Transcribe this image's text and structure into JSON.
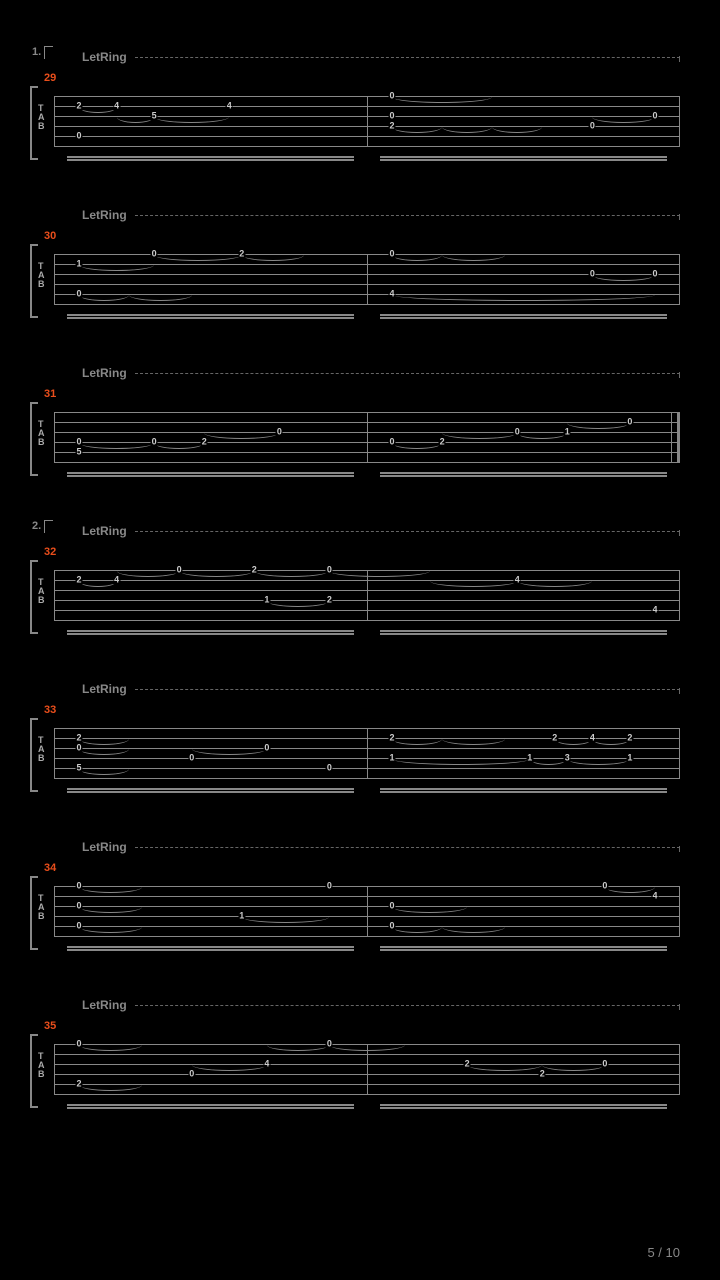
{
  "page": {
    "current": 5,
    "total": 10
  },
  "letring_label": "LetRing",
  "tab_letters": [
    "T",
    "A",
    "B"
  ],
  "string_positions": [
    0,
    10,
    20,
    30,
    40,
    50
  ],
  "accent_color": "#e94e1b",
  "measures": [
    {
      "number": 29,
      "repeat": "1.",
      "bars": [
        0,
        50,
        100
      ],
      "beams": [
        [
          2,
          48
        ],
        [
          52,
          98
        ]
      ],
      "notes": [
        {
          "s": 1,
          "x": 4,
          "f": "2"
        },
        {
          "s": 1,
          "x": 10,
          "f": "4"
        },
        {
          "s": 4,
          "x": 4,
          "f": "0"
        },
        {
          "s": 2,
          "x": 16,
          "f": "5"
        },
        {
          "s": 1,
          "x": 28,
          "f": "4"
        },
        {
          "s": 0,
          "x": 54,
          "f": "0"
        },
        {
          "s": 2,
          "x": 54,
          "f": "0"
        },
        {
          "s": 3,
          "x": 54,
          "f": "2"
        },
        {
          "s": 3,
          "x": 86,
          "f": "0"
        },
        {
          "s": 2,
          "x": 96,
          "f": "0"
        }
      ],
      "ties": [
        [
          4,
          10,
          1
        ],
        [
          10,
          16,
          2
        ],
        [
          16,
          28,
          2
        ],
        [
          54,
          70,
          0
        ],
        [
          54,
          62,
          3
        ],
        [
          62,
          70,
          3
        ],
        [
          70,
          78,
          3
        ],
        [
          86,
          96,
          2
        ]
      ]
    },
    {
      "number": 30,
      "bars": [
        0,
        50,
        100
      ],
      "beams": [
        [
          2,
          48
        ],
        [
          52,
          98
        ]
      ],
      "notes": [
        {
          "s": 1,
          "x": 4,
          "f": "1"
        },
        {
          "s": 4,
          "x": 4,
          "f": "0"
        },
        {
          "s": 0,
          "x": 16,
          "f": "0"
        },
        {
          "s": 0,
          "x": 30,
          "f": "2"
        },
        {
          "s": 0,
          "x": 54,
          "f": "0"
        },
        {
          "s": 4,
          "x": 54,
          "f": "4"
        },
        {
          "s": 2,
          "x": 86,
          "f": "0"
        },
        {
          "s": 2,
          "x": 96,
          "f": "0"
        }
      ],
      "ties": [
        [
          4,
          16,
          1
        ],
        [
          4,
          12,
          4
        ],
        [
          12,
          22,
          4
        ],
        [
          16,
          30,
          0
        ],
        [
          30,
          40,
          0
        ],
        [
          54,
          62,
          0
        ],
        [
          62,
          72,
          0
        ],
        [
          54,
          96,
          4
        ],
        [
          86,
          96,
          2
        ]
      ]
    },
    {
      "number": 31,
      "bars": [
        0,
        50,
        100
      ],
      "end_bar": true,
      "beams": [
        [
          2,
          48
        ],
        [
          52,
          98
        ]
      ],
      "notes": [
        {
          "s": 3,
          "x": 4,
          "f": "0"
        },
        {
          "s": 4,
          "x": 4,
          "f": "5"
        },
        {
          "s": 3,
          "x": 16,
          "f": "0"
        },
        {
          "s": 3,
          "x": 24,
          "f": "2"
        },
        {
          "s": 2,
          "x": 36,
          "f": "0"
        },
        {
          "s": 3,
          "x": 54,
          "f": "0"
        },
        {
          "s": 3,
          "x": 62,
          "f": "2"
        },
        {
          "s": 2,
          "x": 74,
          "f": "0"
        },
        {
          "s": 2,
          "x": 82,
          "f": "1"
        },
        {
          "s": 1,
          "x": 92,
          "f": "0"
        }
      ],
      "ties": [
        [
          4,
          16,
          3
        ],
        [
          16,
          24,
          3
        ],
        [
          24,
          36,
          2
        ],
        [
          54,
          62,
          3
        ],
        [
          62,
          74,
          2
        ],
        [
          74,
          82,
          2
        ],
        [
          82,
          92,
          1
        ]
      ]
    },
    {
      "number": 32,
      "repeat": "2.",
      "bars": [
        0,
        50,
        100
      ],
      "beams": [
        [
          2,
          48
        ],
        [
          52,
          98
        ]
      ],
      "notes": [
        {
          "s": 1,
          "x": 4,
          "f": "2"
        },
        {
          "s": 1,
          "x": 10,
          "f": "4"
        },
        {
          "s": 0,
          "x": 20,
          "f": "0"
        },
        {
          "s": 0,
          "x": 32,
          "f": "2"
        },
        {
          "s": 0,
          "x": 44,
          "f": "0"
        },
        {
          "s": 3,
          "x": 34,
          "f": "1"
        },
        {
          "s": 3,
          "x": 44,
          "f": "2"
        },
        {
          "s": 1,
          "x": 74,
          "f": "4"
        },
        {
          "s": 4,
          "x": 96,
          "f": "4"
        }
      ],
      "ties": [
        [
          4,
          10,
          1
        ],
        [
          10,
          20,
          0
        ],
        [
          20,
          32,
          0
        ],
        [
          32,
          44,
          0
        ],
        [
          34,
          44,
          3
        ],
        [
          44,
          60,
          0
        ],
        [
          60,
          74,
          1
        ],
        [
          74,
          86,
          1
        ]
      ]
    },
    {
      "number": 33,
      "bars": [
        0,
        50,
        100
      ],
      "beams": [
        [
          2,
          48
        ],
        [
          52,
          98
        ]
      ],
      "notes": [
        {
          "s": 1,
          "x": 4,
          "f": "2"
        },
        {
          "s": 2,
          "x": 4,
          "f": "0"
        },
        {
          "s": 4,
          "x": 4,
          "f": "5"
        },
        {
          "s": 3,
          "x": 22,
          "f": "0"
        },
        {
          "s": 2,
          "x": 34,
          "f": "0"
        },
        {
          "s": 4,
          "x": 44,
          "f": "0"
        },
        {
          "s": 1,
          "x": 54,
          "f": "2"
        },
        {
          "s": 3,
          "x": 54,
          "f": "1"
        },
        {
          "s": 3,
          "x": 76,
          "f": "1"
        },
        {
          "s": 1,
          "x": 80,
          "f": "2"
        },
        {
          "s": 1,
          "x": 86,
          "f": "4"
        },
        {
          "s": 1,
          "x": 92,
          "f": "2"
        },
        {
          "s": 3,
          "x": 82,
          "f": "3"
        },
        {
          "s": 3,
          "x": 92,
          "f": "1"
        }
      ],
      "ties": [
        [
          4,
          12,
          1
        ],
        [
          4,
          12,
          2
        ],
        [
          4,
          12,
          4
        ],
        [
          22,
          34,
          2
        ],
        [
          54,
          62,
          1
        ],
        [
          62,
          72,
          1
        ],
        [
          54,
          76,
          3
        ],
        [
          80,
          86,
          1
        ],
        [
          86,
          92,
          1
        ],
        [
          76,
          82,
          3
        ],
        [
          82,
          92,
          3
        ]
      ]
    },
    {
      "number": 34,
      "bars": [
        0,
        50,
        100
      ],
      "beams": [
        [
          2,
          48
        ],
        [
          52,
          98
        ]
      ],
      "notes": [
        {
          "s": 0,
          "x": 4,
          "f": "0"
        },
        {
          "s": 2,
          "x": 4,
          "f": "0"
        },
        {
          "s": 4,
          "x": 4,
          "f": "0"
        },
        {
          "s": 3,
          "x": 30,
          "f": "1"
        },
        {
          "s": 0,
          "x": 44,
          "f": "0"
        },
        {
          "s": 2,
          "x": 54,
          "f": "0"
        },
        {
          "s": 4,
          "x": 54,
          "f": "0"
        },
        {
          "s": 0,
          "x": 88,
          "f": "0"
        },
        {
          "s": 1,
          "x": 96,
          "f": "4"
        }
      ],
      "ties": [
        [
          4,
          14,
          0
        ],
        [
          4,
          14,
          2
        ],
        [
          4,
          14,
          4
        ],
        [
          30,
          44,
          3
        ],
        [
          54,
          62,
          4
        ],
        [
          62,
          72,
          4
        ],
        [
          54,
          66,
          2
        ],
        [
          88,
          96,
          0
        ]
      ]
    },
    {
      "number": 35,
      "bars": [
        0,
        50,
        100
      ],
      "beams": [
        [
          2,
          48
        ],
        [
          52,
          98
        ]
      ],
      "notes": [
        {
          "s": 0,
          "x": 4,
          "f": "0"
        },
        {
          "s": 4,
          "x": 4,
          "f": "2"
        },
        {
          "s": 3,
          "x": 22,
          "f": "0"
        },
        {
          "s": 2,
          "x": 34,
          "f": "4"
        },
        {
          "s": 0,
          "x": 44,
          "f": "0"
        },
        {
          "s": 2,
          "x": 66,
          "f": "2"
        },
        {
          "s": 3,
          "x": 78,
          "f": "2"
        },
        {
          "s": 2,
          "x": 88,
          "f": "0"
        }
      ],
      "ties": [
        [
          4,
          14,
          0
        ],
        [
          4,
          14,
          4
        ],
        [
          22,
          34,
          2
        ],
        [
          34,
          44,
          0
        ],
        [
          44,
          56,
          0
        ],
        [
          66,
          78,
          2
        ],
        [
          78,
          88,
          2
        ]
      ]
    }
  ]
}
